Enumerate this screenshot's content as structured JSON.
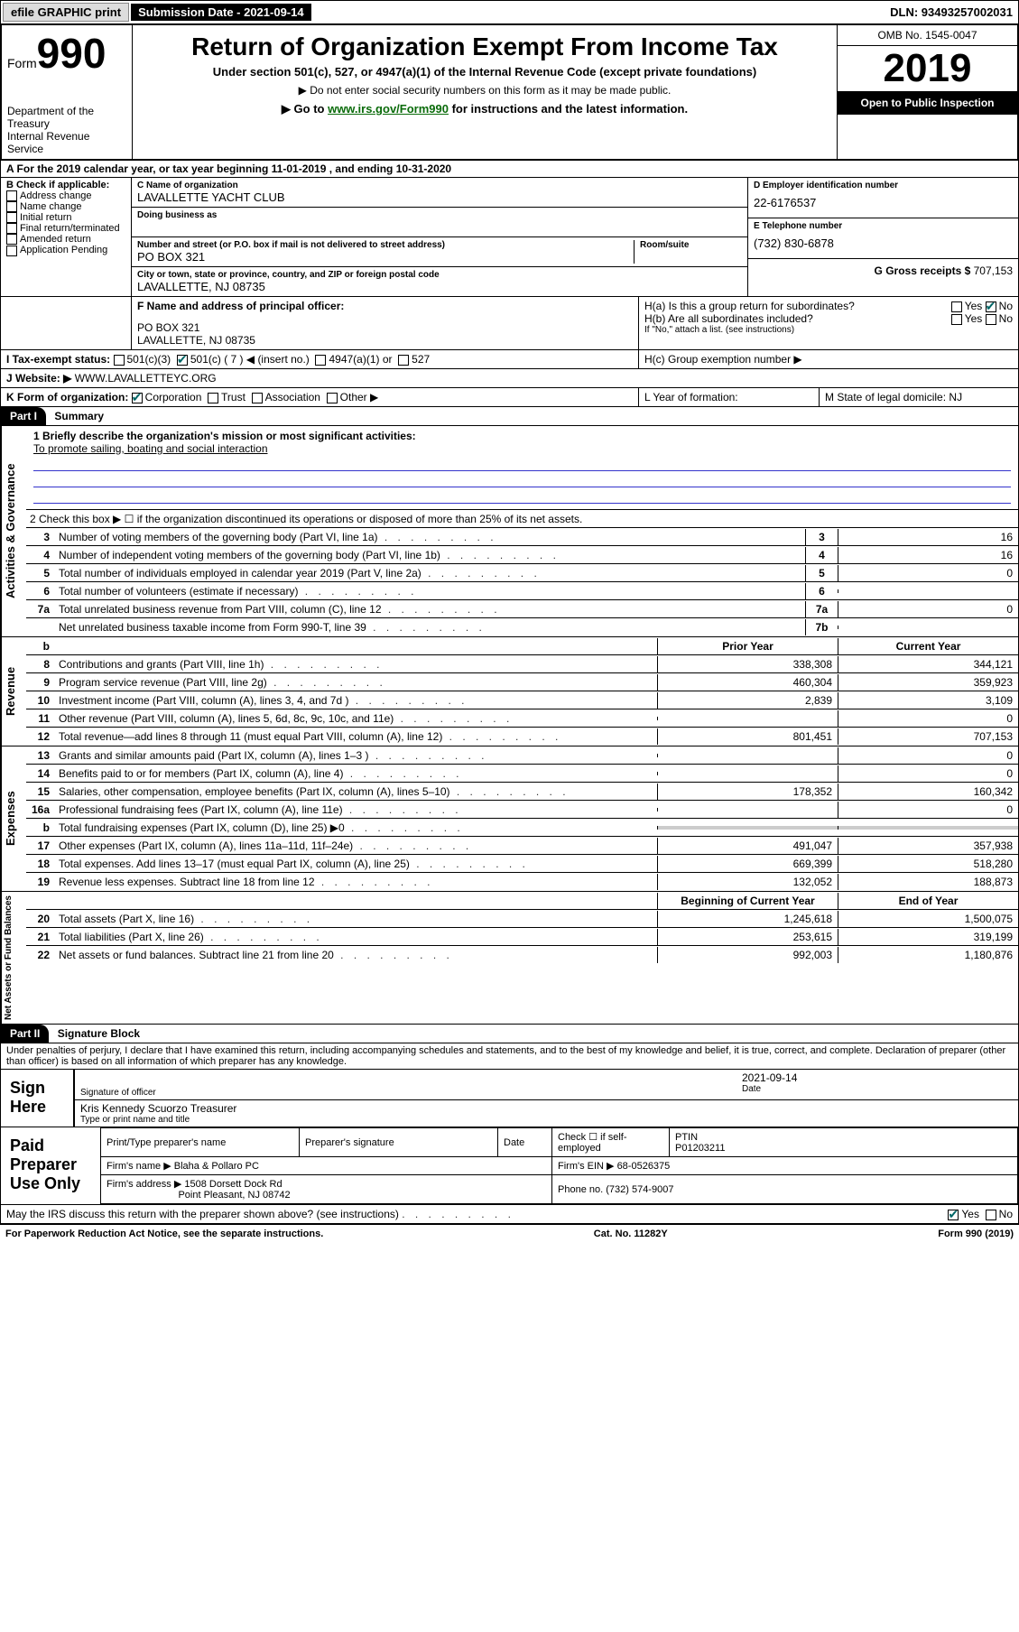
{
  "topbar": {
    "efile_btn": "efile GRAPHIC print",
    "sub_date_label": "Submission Date - 2021-09-14",
    "dln": "DLN: 93493257002031"
  },
  "header": {
    "form_label": "Form",
    "form_number": "990",
    "dept": "Department of the Treasury",
    "irs": "Internal Revenue Service",
    "title": "Return of Organization Exempt From Income Tax",
    "subtitle": "Under section 501(c), 527, or 4947(a)(1) of the Internal Revenue Code (except private foundations)",
    "note1": "▶ Do not enter social security numbers on this form as it may be made public.",
    "note2_pre": "▶ Go to ",
    "note2_link": "www.irs.gov/Form990",
    "note2_post": " for instructions and the latest information.",
    "omb": "OMB No. 1545-0047",
    "year": "2019",
    "open": "Open to Public Inspection"
  },
  "period": "A  For the 2019 calendar year, or tax year beginning 11-01-2019   , and ending 10-31-2020",
  "boxB": {
    "label": "B Check if applicable:",
    "opts": [
      "Address change",
      "Name change",
      "Initial return",
      "Final return/terminated",
      "Amended return",
      "Application Pending"
    ]
  },
  "boxC": {
    "name_label": "C Name of organization",
    "name": "LAVALLETTE YACHT CLUB",
    "dba_label": "Doing business as",
    "addr_label": "Number and street (or P.O. box if mail is not delivered to street address)",
    "room_label": "Room/suite",
    "addr": "PO BOX 321",
    "city_label": "City or town, state or province, country, and ZIP or foreign postal code",
    "city": "LAVALLETTE, NJ  08735"
  },
  "boxD": {
    "label": "D Employer identification number",
    "val": "22-6176537"
  },
  "boxE": {
    "label": "E Telephone number",
    "val": "(732) 830-6878"
  },
  "boxG": {
    "label": "G Gross receipts $",
    "val": "707,153"
  },
  "boxF": {
    "label": "F Name and address of principal officer:",
    "addr1": "PO BOX 321",
    "addr2": "LAVALLETTE, NJ  08735"
  },
  "boxH": {
    "ha": "H(a)  Is this a group return for subordinates?",
    "hb": "H(b)  Are all subordinates included?",
    "hb_note": "If \"No,\" attach a list. (see instructions)",
    "hc": "H(c)  Group exemption number ▶",
    "yes": "Yes",
    "no": "No"
  },
  "boxI": {
    "label": "I  Tax-exempt status:",
    "o1": "501(c)(3)",
    "o2": "501(c) ( 7 ) ◀ (insert no.)",
    "o3": "4947(a)(1) or",
    "o4": "527"
  },
  "boxJ": {
    "label": "J  Website: ▶",
    "val": "WWW.LAVALLETTEYC.ORG"
  },
  "boxK": {
    "label": "K Form of organization:",
    "o1": "Corporation",
    "o2": "Trust",
    "o3": "Association",
    "o4": "Other ▶"
  },
  "boxL": {
    "label": "L Year of formation:"
  },
  "boxM": {
    "label": "M State of legal domicile: NJ"
  },
  "part1": {
    "header": "Part I",
    "title": "Summary",
    "line1_label": "1  Briefly describe the organization's mission or most significant activities:",
    "line1_val": "To promote sailing, boating and social interaction",
    "line2": "2   Check this box ▶ ☐  if the organization discontinued its operations or disposed of more than 25% of its net assets.",
    "col_prior": "Prior Year",
    "col_current": "Current Year",
    "col_begin": "Beginning of Current Year",
    "col_end": "End of Year",
    "sections": {
      "governance": "Activities & Governance",
      "revenue": "Revenue",
      "expenses": "Expenses",
      "netassets": "Net Assets or Fund Balances"
    },
    "rows_gov": [
      {
        "n": "3",
        "t": "Number of voting members of the governing body (Part VI, line 1a)",
        "box": "3",
        "v": "16"
      },
      {
        "n": "4",
        "t": "Number of independent voting members of the governing body (Part VI, line 1b)",
        "box": "4",
        "v": "16"
      },
      {
        "n": "5",
        "t": "Total number of individuals employed in calendar year 2019 (Part V, line 2a)",
        "box": "5",
        "v": "0"
      },
      {
        "n": "6",
        "t": "Total number of volunteers (estimate if necessary)",
        "box": "6",
        "v": ""
      },
      {
        "n": "7a",
        "t": "Total unrelated business revenue from Part VIII, column (C), line 12",
        "box": "7a",
        "v": "0"
      },
      {
        "n": "",
        "t": "Net unrelated business taxable income from Form 990-T, line 39",
        "box": "7b",
        "v": ""
      }
    ],
    "rows_rev": [
      {
        "n": "8",
        "t": "Contributions and grants (Part VIII, line 1h)",
        "p": "338,308",
        "c": "344,121"
      },
      {
        "n": "9",
        "t": "Program service revenue (Part VIII, line 2g)",
        "p": "460,304",
        "c": "359,923"
      },
      {
        "n": "10",
        "t": "Investment income (Part VIII, column (A), lines 3, 4, and 7d )",
        "p": "2,839",
        "c": "3,109"
      },
      {
        "n": "11",
        "t": "Other revenue (Part VIII, column (A), lines 5, 6d, 8c, 9c, 10c, and 11e)",
        "p": "",
        "c": "0"
      },
      {
        "n": "12",
        "t": "Total revenue—add lines 8 through 11 (must equal Part VIII, column (A), line 12)",
        "p": "801,451",
        "c": "707,153"
      }
    ],
    "rows_exp": [
      {
        "n": "13",
        "t": "Grants and similar amounts paid (Part IX, column (A), lines 1–3 )",
        "p": "",
        "c": "0"
      },
      {
        "n": "14",
        "t": "Benefits paid to or for members (Part IX, column (A), line 4)",
        "p": "",
        "c": "0"
      },
      {
        "n": "15",
        "t": "Salaries, other compensation, employee benefits (Part IX, column (A), lines 5–10)",
        "p": "178,352",
        "c": "160,342"
      },
      {
        "n": "16a",
        "t": "Professional fundraising fees (Part IX, column (A), line 11e)",
        "p": "",
        "c": "0"
      },
      {
        "n": "b",
        "t": "Total fundraising expenses (Part IX, column (D), line 25) ▶0",
        "p": "",
        "c": "",
        "shaded": true
      },
      {
        "n": "17",
        "t": "Other expenses (Part IX, column (A), lines 11a–11d, 11f–24e)",
        "p": "491,047",
        "c": "357,938"
      },
      {
        "n": "18",
        "t": "Total expenses. Add lines 13–17 (must equal Part IX, column (A), line 25)",
        "p": "669,399",
        "c": "518,280"
      },
      {
        "n": "19",
        "t": "Revenue less expenses. Subtract line 18 from line 12",
        "p": "132,052",
        "c": "188,873"
      }
    ],
    "rows_net": [
      {
        "n": "20",
        "t": "Total assets (Part X, line 16)",
        "p": "1,245,618",
        "c": "1,500,075"
      },
      {
        "n": "21",
        "t": "Total liabilities (Part X, line 26)",
        "p": "253,615",
        "c": "319,199"
      },
      {
        "n": "22",
        "t": "Net assets or fund balances. Subtract line 21 from line 20",
        "p": "992,003",
        "c": "1,180,876"
      }
    ]
  },
  "part2": {
    "header": "Part II",
    "title": "Signature Block",
    "declaration": "Under penalties of perjury, I declare that I have examined this return, including accompanying schedules and statements, and to the best of my knowledge and belief, it is true, correct, and complete. Declaration of preparer (other than officer) is based on all information of which preparer has any knowledge.",
    "sign_here": "Sign Here",
    "sig_officer": "Signature of officer",
    "sig_date_label": "Date",
    "sig_date": "2021-09-14",
    "officer_name": "Kris Kennedy Scuorzo  Treasurer",
    "type_name": "Type or print name and title",
    "paid_prep": "Paid Preparer Use Only",
    "prep_name_label": "Print/Type preparer's name",
    "prep_sig_label": "Preparer's signature",
    "date_label": "Date",
    "check_self": "Check ☐ if self-employed",
    "ptin_label": "PTIN",
    "ptin": "P01203211",
    "firm_name_label": "Firm's name    ▶",
    "firm_name": "Blaha & Pollaro PC",
    "firm_ein_label": "Firm's EIN ▶",
    "firm_ein": "68-0526375",
    "firm_addr_label": "Firm's address ▶",
    "firm_addr1": "1508 Dorsett Dock Rd",
    "firm_addr2": "Point Pleasant, NJ  08742",
    "phone_label": "Phone no.",
    "phone": "(732) 574-9007",
    "discuss": "May the IRS discuss this return with the preparer shown above? (see instructions)",
    "yes": "Yes",
    "no": "No"
  },
  "footer": {
    "paperwork": "For Paperwork Reduction Act Notice, see the separate instructions.",
    "catno": "Cat. No. 11282Y",
    "formno": "Form 990 (2019)"
  }
}
